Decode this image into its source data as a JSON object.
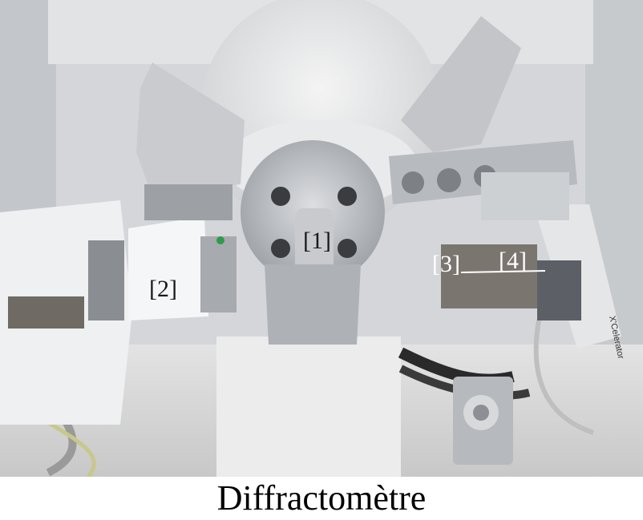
{
  "figure": {
    "callouts": {
      "label_1": "[1]",
      "label_2": "[2]",
      "label_3": "[3]",
      "label_4": "[4]"
    },
    "detector_brand_text": "X'Celerator",
    "caption": "Diffractomètre"
  },
  "colors": {
    "background": "#ffffff",
    "caption_text": "#000000",
    "housing_grey": "#d9dadc",
    "metal": "#b9bcc0",
    "dark_callout_text": "#1a1a1a",
    "light_callout_text": "#ffffff"
  }
}
